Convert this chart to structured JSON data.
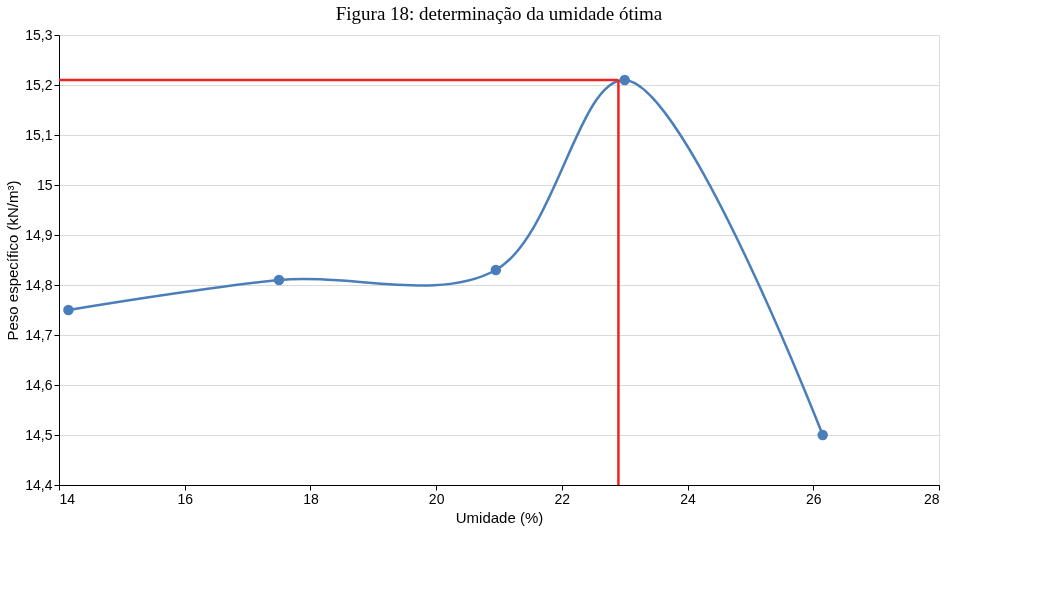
{
  "chart_data": {
    "type": "line",
    "title": "Figura 18: determinação da umidade ótima",
    "xlabel": "Umidade (%)",
    "ylabel": "Peso específico (kN/m³)",
    "x": [
      14.15,
      17.5,
      20.95,
      23.0,
      26.15
    ],
    "series": [
      {
        "color": "#4a7ebb",
        "values": [
          14.75,
          14.81,
          14.83,
          15.21,
          14.5
        ]
      }
    ],
    "marker": "circle",
    "line_style": "solid",
    "grid": "y",
    "xlim": [
      14,
      28
    ],
    "xticks": [
      14,
      16,
      18,
      20,
      22,
      24,
      26,
      28
    ],
    "ylim": [
      14.4,
      15.3
    ],
    "yticks": [
      {
        "value": 14.4,
        "label": "14,4"
      },
      {
        "value": 14.5,
        "label": "14,5"
      },
      {
        "value": 14.6,
        "label": "14,6"
      },
      {
        "value": 14.7,
        "label": "14,7"
      },
      {
        "value": 14.8,
        "label": "14,8"
      },
      {
        "value": 14.9,
        "label": "14,9"
      },
      {
        "value": 15.0,
        "label": "15"
      },
      {
        "value": 15.1,
        "label": "15,1"
      },
      {
        "value": 15.2,
        "label": "15,2"
      },
      {
        "value": 15.3,
        "label": "15,3"
      }
    ],
    "ref_lines": [
      {
        "axis": "y",
        "value": 15.21,
        "color": "#ee2222"
      },
      {
        "axis": "x",
        "value": 22.9,
        "color": "#ee2222"
      }
    ]
  }
}
